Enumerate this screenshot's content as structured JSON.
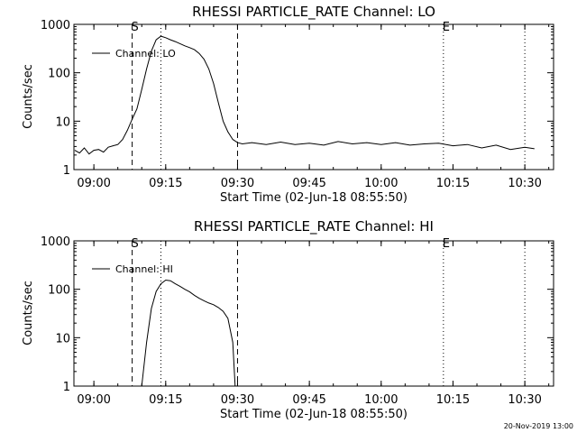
{
  "chart_data": [
    {
      "type": "line",
      "title": "RHESSI PARTICLE_RATE Channel: LO",
      "xlabel": "Start Time (02-Jun-18 08:55:50)",
      "ylabel": "Counts/sec",
      "yscale": "log",
      "ylim": [
        1,
        1000
      ],
      "xlim": [
        "08:55:50",
        "10:36:00"
      ],
      "x_ticks": [
        "09:00",
        "09:15",
        "09:30",
        "09:45",
        "10:00",
        "10:15",
        "10:30"
      ],
      "y_ticks": [
        "1",
        "10",
        "100",
        "1000"
      ],
      "legend": "top-left",
      "markers": [
        {
          "label": "S",
          "time": "09:08",
          "style": "dashed"
        },
        {
          "label": "",
          "time": "09:14",
          "style": "dotted"
        },
        {
          "label": "",
          "time": "09:30",
          "style": "dashed"
        },
        {
          "label": "E",
          "time": "10:13",
          "style": "dotted"
        },
        {
          "label": "",
          "time": "10:30",
          "style": "dotted"
        }
      ],
      "series": [
        {
          "name": "Channel: LO",
          "x": [
            "08:56",
            "08:57",
            "08:58",
            "08:59",
            "09:00",
            "09:01",
            "09:02",
            "09:03",
            "09:04",
            "09:05",
            "09:06",
            "09:07",
            "09:08",
            "09:09",
            "09:10",
            "09:11",
            "09:12",
            "09:13",
            "09:14",
            "09:15",
            "09:16",
            "09:17",
            "09:18",
            "09:19",
            "09:20",
            "09:21",
            "09:22",
            "09:23",
            "09:24",
            "09:25",
            "09:26",
            "09:27",
            "09:28",
            "09:29",
            "09:30",
            "09:31",
            "09:33",
            "09:36",
            "09:39",
            "09:42",
            "09:45",
            "09:48",
            "09:51",
            "09:54",
            "09:57",
            "10:00",
            "10:03",
            "10:06",
            "10:09",
            "10:12",
            "10:15",
            "10:18",
            "10:21",
            "10:24",
            "10:27",
            "10:30",
            "10:32"
          ],
          "values": [
            2.5,
            2.2,
            2.8,
            2.1,
            2.5,
            2.6,
            2.3,
            2.9,
            3.1,
            3.3,
            4.2,
            6.5,
            11,
            18,
            45,
            120,
            280,
            480,
            570,
            530,
            480,
            440,
            400,
            360,
            330,
            300,
            250,
            190,
            120,
            60,
            24,
            10,
            6,
            4.2,
            3.6,
            3.4,
            3.6,
            3.3,
            3.7,
            3.3,
            3.5,
            3.2,
            3.8,
            3.4,
            3.6,
            3.3,
            3.6,
            3.2,
            3.4,
            3.5,
            3.1,
            3.3,
            2.8,
            3.2,
            2.6,
            2.9,
            2.7
          ]
        }
      ]
    },
    {
      "type": "line",
      "title": "RHESSI PARTICLE_RATE Channel: HI",
      "xlabel": "Start Time (02-Jun-18 08:55:50)",
      "ylabel": "Counts/sec",
      "yscale": "log",
      "ylim": [
        1,
        1000
      ],
      "xlim": [
        "08:55:50",
        "10:36:00"
      ],
      "x_ticks": [
        "09:00",
        "09:15",
        "09:30",
        "09:45",
        "10:00",
        "10:15",
        "10:30"
      ],
      "y_ticks": [
        "1",
        "10",
        "100",
        "1000"
      ],
      "legend": "top-left",
      "markers": [
        {
          "label": "S",
          "time": "09:08",
          "style": "dashed"
        },
        {
          "label": "",
          "time": "09:14",
          "style": "dotted"
        },
        {
          "label": "",
          "time": "09:30",
          "style": "dashed"
        },
        {
          "label": "E",
          "time": "10:13",
          "style": "dotted"
        },
        {
          "label": "",
          "time": "10:30",
          "style": "dotted"
        }
      ],
      "series": [
        {
          "name": "Channel: HI",
          "x": [
            "09:10",
            "09:11",
            "09:12",
            "09:13",
            "09:14",
            "09:15",
            "09:16",
            "09:17",
            "09:18",
            "09:19",
            "09:20",
            "09:21",
            "09:22",
            "09:23",
            "09:24",
            "09:25",
            "09:26",
            "09:27",
            "09:28",
            "09:29",
            "09:29.5"
          ],
          "values": [
            1,
            8,
            40,
            90,
            130,
            155,
            150,
            130,
            115,
            100,
            88,
            75,
            65,
            58,
            52,
            48,
            42,
            35,
            25,
            8,
            1
          ]
        }
      ]
    }
  ],
  "footer": "20-Nov-2019 13:00"
}
